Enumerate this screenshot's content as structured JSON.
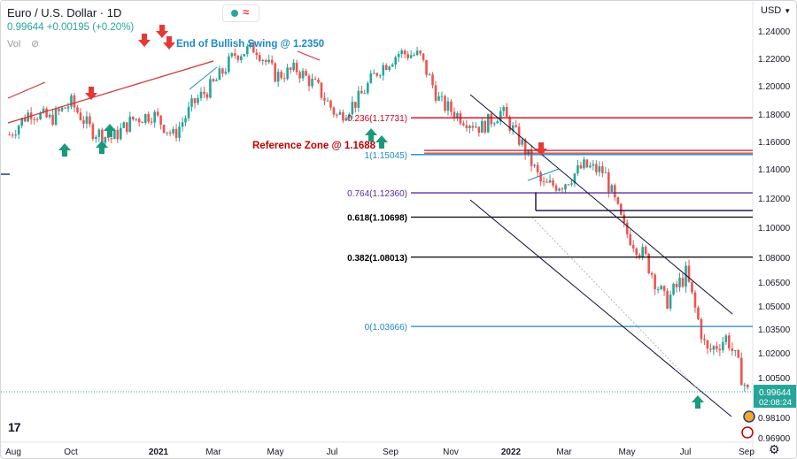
{
  "header": {
    "symbol": "Euro / U.S. Dollar",
    "separator": "·",
    "interval": "1D",
    "last_price": "0.99644",
    "change": "+0.00195 (+0.20%)",
    "vol_label": "Vol",
    "currency": "USD"
  },
  "chart_data": {
    "type": "candlestick",
    "title": "Euro / U.S. Dollar · 1D",
    "y_axis_ticks": [
      "1.24000",
      "1.22000",
      "1.20000",
      "1.18000",
      "1.16000",
      "1.14000",
      "1.12000",
      "1.10000",
      "1.08000",
      "1.06500",
      "1.05000",
      "1.03500",
      "1.02000",
      "1.00500",
      "0.98100",
      "0.96900"
    ],
    "x_axis_ticks": [
      "Aug",
      "Oct",
      "2021",
      "Mar",
      "May",
      "Jul",
      "Sep",
      "Nov",
      "2022",
      "Mar",
      "May",
      "Jul",
      "Sep"
    ],
    "current_price_label": "0.99644",
    "countdown_label": "02:08:24",
    "close_path": [
      [
        "Aug",
        1.165
      ],
      [
        "Aug",
        1.182
      ],
      [
        "Sep",
        1.176
      ],
      [
        "Sep",
        1.188
      ],
      [
        "Sep",
        1.168
      ],
      [
        "Oct",
        1.162
      ],
      [
        "Oct",
        1.176
      ],
      [
        "Oct",
        1.18
      ],
      [
        "Nov",
        1.164
      ],
      [
        "Nov",
        1.188
      ],
      [
        "Dec",
        1.202
      ],
      [
        "Dec",
        1.223
      ],
      [
        "2021",
        1.228
      ],
      [
        "Jan",
        1.207
      ],
      [
        "Feb",
        1.212
      ],
      [
        "Mar",
        1.199
      ],
      [
        "Mar",
        1.178
      ],
      [
        "Apr",
        1.19
      ],
      [
        "May",
        1.212
      ],
      [
        "May",
        1.224
      ],
      [
        "Jun",
        1.222
      ],
      [
        "Jun",
        1.188
      ],
      [
        "Jul",
        1.178
      ],
      [
        "Aug",
        1.17
      ],
      [
        "Sep",
        1.182
      ],
      [
        "Oct",
        1.158
      ],
      [
        "Nov",
        1.128
      ],
      [
        "Dec",
        1.13
      ],
      [
        "2022",
        1.142
      ],
      [
        "Feb",
        1.138
      ],
      [
        "Mar",
        1.098
      ],
      [
        "Apr",
        1.08
      ],
      [
        "May",
        1.052
      ],
      [
        "Jun",
        1.07
      ],
      [
        "Jul",
        1.02
      ],
      [
        "Aug",
        1.03
      ],
      [
        "Sep",
        0.996
      ]
    ],
    "annotations": [
      {
        "text": "End of Bullish Swing @ 1.2350",
        "color": "#1e88c8"
      },
      {
        "text": "Reference Zone @ 1.1688",
        "color": "#c00000"
      }
    ],
    "fib_levels": [
      {
        "label": "0.236(1.17731)",
        "value": 1.17731,
        "color": "#d0021b"
      },
      {
        "label": "1(1.15045)",
        "value": 1.15045,
        "color": "#1e88c8"
      },
      {
        "label": "0.764(1.12360)",
        "value": 1.1236,
        "color": "#5b2d9e"
      },
      {
        "label": "0.618(1.10698)",
        "value": 1.10698,
        "color": "#000000"
      },
      {
        "label": "0.382(1.08013)",
        "value": 1.08013,
        "color": "#000000"
      },
      {
        "label": "0(1.03666)",
        "value": 1.03666,
        "color": "#1e88c8"
      }
    ],
    "colors": {
      "up": "#26a69a",
      "down": "#ef5350",
      "channel": "#0d0d3d",
      "trend_red": "#d32f2f",
      "arrow_red": "#e53935",
      "arrow_green": "#1a9a7a"
    }
  }
}
